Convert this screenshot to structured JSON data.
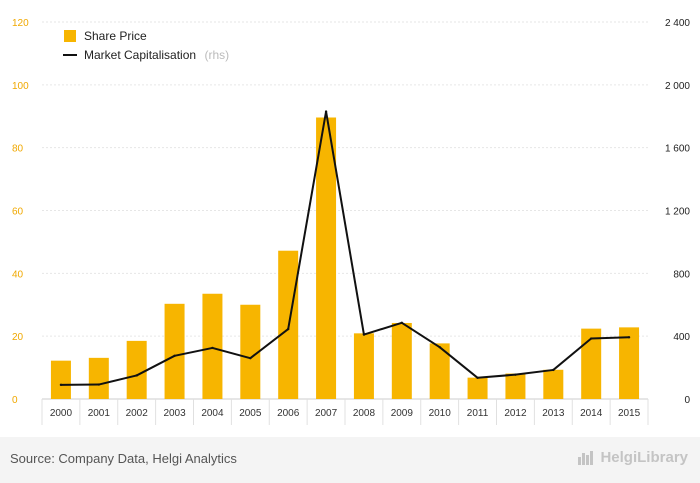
{
  "chart_data": {
    "type": "bar",
    "categories": [
      "2000",
      "2001",
      "2002",
      "2003",
      "2004",
      "2005",
      "2006",
      "2007",
      "2008",
      "2009",
      "2010",
      "2011",
      "2012",
      "2013",
      "2014",
      "2015"
    ],
    "series": [
      {
        "name": "Share Price",
        "type": "bar",
        "axis": "left",
        "color": "#f7b500",
        "values": [
          12.2,
          13.1,
          18.5,
          30.3,
          33.5,
          30.0,
          47.2,
          89.6,
          20.9,
          24.2,
          17.7,
          6.8,
          8.1,
          9.3,
          22.4,
          22.8
        ]
      },
      {
        "name": "Market Capitalisation",
        "name_note": "(rhs)",
        "type": "line",
        "axis": "right",
        "color": "#111111",
        "values": [
          90,
          92,
          150,
          275,
          325,
          260,
          445,
          1830,
          410,
          485,
          330,
          135,
          155,
          185,
          385,
          393
        ]
      }
    ],
    "left_axis": {
      "min": 0,
      "max": 120,
      "ticks": [
        "0",
        "20",
        "40",
        "60",
        "80",
        "100",
        "120"
      ]
    },
    "right_axis": {
      "min": 0,
      "max": 2400,
      "ticks": [
        "0",
        "400",
        "800",
        "1 200",
        "1 600",
        "2 000",
        "2 400"
      ]
    },
    "legend": "top-left",
    "grid": true
  },
  "footer": {
    "source": "Source: Company Data, Helgi Analytics",
    "brand": "HelgiLibrary"
  }
}
